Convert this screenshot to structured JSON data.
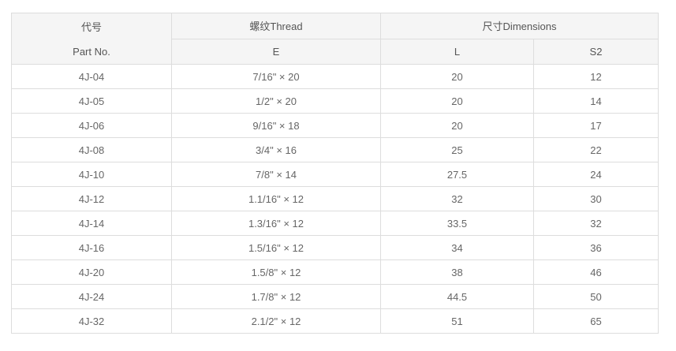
{
  "colors": {
    "page_bg": "#ffffff",
    "header_bg": "#f5f5f5",
    "border": "#dddddd",
    "text": "#666666"
  },
  "table": {
    "header": {
      "part_col_line1": "代号",
      "part_col_line2": "Part No.",
      "thread_group": "螺纹Thread",
      "dimensions_group": "尺寸Dimensions",
      "sub_e": "E",
      "sub_l": "L",
      "sub_s2": "S2"
    },
    "column_keys": [
      "part_no",
      "e",
      "l",
      "s2"
    ],
    "rows": [
      {
        "part_no": "4J-04",
        "e": "7/16\" × 20",
        "l": "20",
        "s2": "12"
      },
      {
        "part_no": "4J-05",
        "e": "1/2\" × 20",
        "l": "20",
        "s2": "14"
      },
      {
        "part_no": "4J-06",
        "e": "9/16\" × 18",
        "l": "20",
        "s2": "17"
      },
      {
        "part_no": "4J-08",
        "e": "3/4\" × 16",
        "l": "25",
        "s2": "22"
      },
      {
        "part_no": "4J-10",
        "e": "7/8\" × 14",
        "l": "27.5",
        "s2": "24"
      },
      {
        "part_no": "4J-12",
        "e": "1.1/16\" × 12",
        "l": "32",
        "s2": "30"
      },
      {
        "part_no": "4J-14",
        "e": "1.3/16\" × 12",
        "l": "33.5",
        "s2": "32"
      },
      {
        "part_no": "4J-16",
        "e": "1.5/16\" × 12",
        "l": "34",
        "s2": "36"
      },
      {
        "part_no": "4J-20",
        "e": "1.5/8\" × 12",
        "l": "38",
        "s2": "46"
      },
      {
        "part_no": "4J-24",
        "e": "1.7/8\" × 12",
        "l": "44.5",
        "s2": "50"
      },
      {
        "part_no": "4J-32",
        "e": "2.1/2\" × 12",
        "l": "51",
        "s2": "65"
      }
    ]
  }
}
